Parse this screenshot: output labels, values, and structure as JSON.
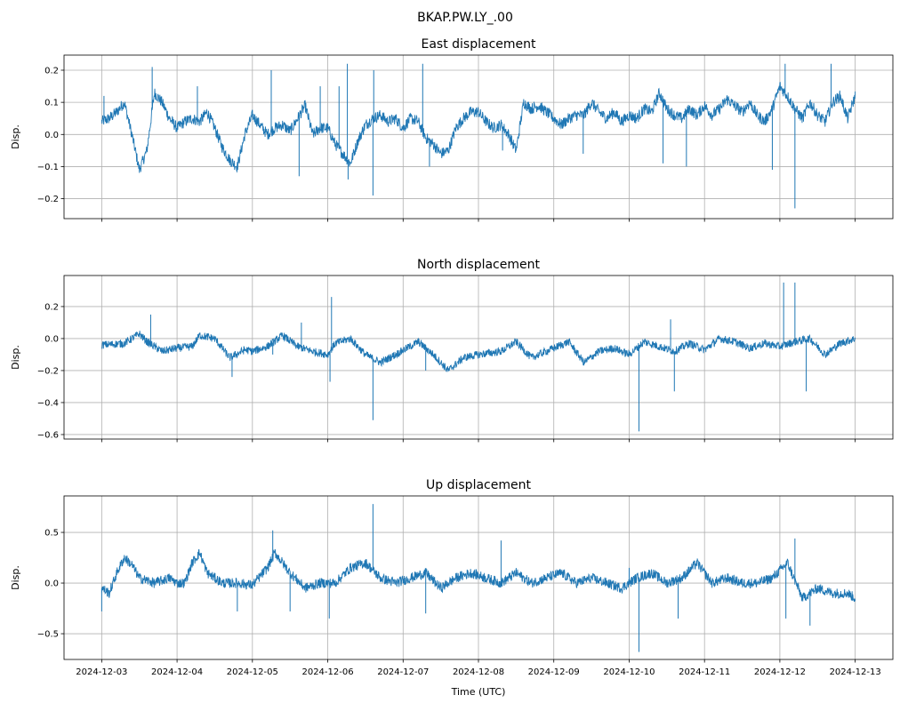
{
  "chart_data": {
    "type": "line",
    "suptitle": "BKAP.PW.LY_.00",
    "xlabel": "Time (UTC)",
    "x_unit": "days since 2024-12-03 00:00 UTC",
    "xlim": [
      -0.5,
      10.5
    ],
    "x_tick_values": [
      0,
      1,
      2,
      3,
      4,
      5,
      6,
      7,
      8,
      9,
      10
    ],
    "x_tick_labels": [
      "2024-12-03",
      "2024-12-04",
      "2024-12-05",
      "2024-12-06",
      "2024-12-07",
      "2024-12-08",
      "2024-12-09",
      "2024-12-10",
      "2024-12-11",
      "2024-12-12",
      "2024-12-13"
    ],
    "grid": true,
    "color": "#1f77b4",
    "panels": [
      {
        "title": "East displacement",
        "ylabel": "Disp.",
        "ylim": [
          -0.262,
          0.247
        ],
        "y_ticks": [
          -0.2,
          -0.1,
          0.0,
          0.1,
          0.2
        ],
        "y_tick_labels": [
          "−0.2",
          "−0.1",
          "0.0",
          "0.1",
          "0.2"
        ],
        "noise": 0.018,
        "series": [
          [
            0,
            0.04
          ],
          [
            0.1,
            0.05
          ],
          [
            0.2,
            0.07
          ],
          [
            0.3,
            0.1
          ],
          [
            0.4,
            0.0
          ],
          [
            0.5,
            -0.11
          ],
          [
            0.6,
            -0.05
          ],
          [
            0.7,
            0.13
          ],
          [
            0.8,
            0.1
          ],
          [
            0.9,
            0.05
          ],
          [
            1.0,
            0.02
          ],
          [
            1.1,
            0.04
          ],
          [
            1.2,
            0.05
          ],
          [
            1.3,
            0.04
          ],
          [
            1.4,
            0.07
          ],
          [
            1.5,
            0.02
          ],
          [
            1.6,
            -0.04
          ],
          [
            1.7,
            -0.08
          ],
          [
            1.8,
            -0.1
          ],
          [
            1.9,
            0.0
          ],
          [
            2.0,
            0.06
          ],
          [
            2.1,
            0.03
          ],
          [
            2.2,
            0.0
          ],
          [
            2.3,
            0.02
          ],
          [
            2.4,
            0.03
          ],
          [
            2.5,
            0.01
          ],
          [
            2.6,
            0.05
          ],
          [
            2.7,
            0.09
          ],
          [
            2.8,
            0.0
          ],
          [
            2.9,
            0.02
          ],
          [
            3.0,
            0.02
          ],
          [
            3.1,
            -0.03
          ],
          [
            3.2,
            -0.06
          ],
          [
            3.3,
            -0.09
          ],
          [
            3.4,
            -0.02
          ],
          [
            3.5,
            0.03
          ],
          [
            3.6,
            0.05
          ],
          [
            3.7,
            0.06
          ],
          [
            3.8,
            0.04
          ],
          [
            3.9,
            0.05
          ],
          [
            4.0,
            0.02
          ],
          [
            4.1,
            0.05
          ],
          [
            4.2,
            0.04
          ],
          [
            4.3,
            -0.01
          ],
          [
            4.4,
            -0.03
          ],
          [
            4.5,
            -0.06
          ],
          [
            4.6,
            -0.05
          ],
          [
            4.7,
            0.02
          ],
          [
            4.8,
            0.05
          ],
          [
            4.9,
            0.07
          ],
          [
            5.0,
            0.07
          ],
          [
            5.1,
            0.04
          ],
          [
            5.2,
            0.02
          ],
          [
            5.3,
            0.03
          ],
          [
            5.4,
            0.0
          ],
          [
            5.5,
            -0.05
          ],
          [
            5.6,
            0.1
          ],
          [
            5.7,
            0.08
          ],
          [
            5.8,
            0.09
          ],
          [
            5.9,
            0.07
          ],
          [
            6.0,
            0.05
          ],
          [
            6.1,
            0.03
          ],
          [
            6.2,
            0.05
          ],
          [
            6.3,
            0.06
          ],
          [
            6.4,
            0.06
          ],
          [
            6.5,
            0.1
          ],
          [
            6.6,
            0.07
          ],
          [
            6.7,
            0.05
          ],
          [
            6.8,
            0.07
          ],
          [
            6.9,
            0.04
          ],
          [
            7.0,
            0.06
          ],
          [
            7.1,
            0.05
          ],
          [
            7.2,
            0.08
          ],
          [
            7.3,
            0.07
          ],
          [
            7.4,
            0.13
          ],
          [
            7.5,
            0.08
          ],
          [
            7.6,
            0.06
          ],
          [
            7.7,
            0.05
          ],
          [
            7.8,
            0.08
          ],
          [
            7.9,
            0.06
          ],
          [
            8.0,
            0.09
          ],
          [
            8.1,
            0.06
          ],
          [
            8.2,
            0.08
          ],
          [
            8.3,
            0.11
          ],
          [
            8.4,
            0.09
          ],
          [
            8.5,
            0.07
          ],
          [
            8.6,
            0.1
          ],
          [
            8.7,
            0.06
          ],
          [
            8.8,
            0.04
          ],
          [
            8.9,
            0.08
          ],
          [
            9.0,
            0.15
          ],
          [
            9.1,
            0.12
          ],
          [
            9.2,
            0.08
          ],
          [
            9.3,
            0.05
          ],
          [
            9.4,
            0.1
          ],
          [
            9.5,
            0.06
          ],
          [
            9.6,
            0.04
          ],
          [
            9.7,
            0.1
          ],
          [
            9.8,
            0.12
          ],
          [
            9.9,
            0.05
          ],
          [
            10.0,
            0.12
          ]
        ],
        "spikes": [
          [
            0.03,
            0.12
          ],
          [
            0.67,
            0.21
          ],
          [
            1.27,
            0.15
          ],
          [
            2.25,
            0.2
          ],
          [
            2.62,
            -0.13
          ],
          [
            2.9,
            0.15
          ],
          [
            3.26,
            0.22
          ],
          [
            3.27,
            -0.14
          ],
          [
            3.15,
            0.15
          ],
          [
            3.6,
            -0.19
          ],
          [
            3.61,
            0.2
          ],
          [
            4.26,
            0.22
          ],
          [
            4.35,
            -0.1
          ],
          [
            5.32,
            -0.05
          ],
          [
            6.39,
            -0.06
          ],
          [
            7.45,
            -0.09
          ],
          [
            7.76,
            -0.1
          ],
          [
            8.9,
            -0.11
          ],
          [
            9.07,
            0.22
          ],
          [
            9.2,
            -0.23
          ],
          [
            9.68,
            0.22
          ]
        ]
      },
      {
        "title": "North displacement",
        "ylabel": "Disp.",
        "ylim": [
          -0.628,
          0.394
        ],
        "y_ticks": [
          -0.6,
          -0.4,
          -0.2,
          0.0,
          0.2
        ],
        "y_tick_labels": [
          "−0.6",
          "−0.4",
          "−0.2",
          "0.0",
          "0.2"
        ],
        "noise": 0.025,
        "series": [
          [
            0,
            -0.04
          ],
          [
            0.3,
            -0.03
          ],
          [
            0.5,
            0.03
          ],
          [
            0.6,
            -0.02
          ],
          [
            0.8,
            -0.08
          ],
          [
            1.0,
            -0.06
          ],
          [
            1.2,
            -0.05
          ],
          [
            1.3,
            0.02
          ],
          [
            1.5,
            0.0
          ],
          [
            1.7,
            -0.12
          ],
          [
            1.9,
            -0.07
          ],
          [
            2.0,
            -0.08
          ],
          [
            2.2,
            -0.05
          ],
          [
            2.4,
            0.02
          ],
          [
            2.6,
            -0.05
          ],
          [
            2.8,
            -0.08
          ],
          [
            3.0,
            -0.1
          ],
          [
            3.1,
            -0.03
          ],
          [
            3.3,
            0.0
          ],
          [
            3.5,
            -0.1
          ],
          [
            3.7,
            -0.15
          ],
          [
            3.9,
            -0.1
          ],
          [
            4.2,
            -0.02
          ],
          [
            4.4,
            -0.1
          ],
          [
            4.6,
            -0.2
          ],
          [
            4.8,
            -0.12
          ],
          [
            5.0,
            -0.1
          ],
          [
            5.3,
            -0.08
          ],
          [
            5.5,
            -0.02
          ],
          [
            5.7,
            -0.12
          ],
          [
            5.9,
            -0.08
          ],
          [
            6.2,
            -0.02
          ],
          [
            6.4,
            -0.15
          ],
          [
            6.6,
            -0.08
          ],
          [
            6.8,
            -0.06
          ],
          [
            7.0,
            -0.1
          ],
          [
            7.2,
            -0.02
          ],
          [
            7.4,
            -0.05
          ],
          [
            7.6,
            -0.08
          ],
          [
            7.8,
            -0.03
          ],
          [
            8.0,
            -0.07
          ],
          [
            8.2,
            0.0
          ],
          [
            8.4,
            -0.02
          ],
          [
            8.6,
            -0.06
          ],
          [
            8.8,
            -0.03
          ],
          [
            9.0,
            -0.05
          ],
          [
            9.2,
            -0.02
          ],
          [
            9.4,
            0.0
          ],
          [
            9.6,
            -0.1
          ],
          [
            9.8,
            -0.03
          ],
          [
            10.0,
            0.0
          ]
        ],
        "spikes": [
          [
            0.65,
            0.15
          ],
          [
            1.73,
            -0.24
          ],
          [
            2.27,
            -0.1
          ],
          [
            2.65,
            0.1
          ],
          [
            3.05,
            0.26
          ],
          [
            3.03,
            -0.27
          ],
          [
            3.6,
            -0.51
          ],
          [
            4.3,
            -0.2
          ],
          [
            7.13,
            -0.58
          ],
          [
            7.55,
            0.12
          ],
          [
            7.6,
            -0.33
          ],
          [
            9.05,
            0.35
          ],
          [
            9.2,
            0.35
          ],
          [
            9.35,
            -0.33
          ]
        ]
      },
      {
        "title": "Up displacement",
        "ylabel": "Disp.",
        "ylim": [
          -0.754,
          0.86
        ],
        "y_ticks": [
          -0.5,
          0.0,
          0.5
        ],
        "y_tick_labels": [
          "−0.5",
          "0.0",
          "0.5"
        ],
        "noise": 0.05,
        "series": [
          [
            0,
            -0.05
          ],
          [
            0.1,
            -0.1
          ],
          [
            0.2,
            0.1
          ],
          [
            0.3,
            0.25
          ],
          [
            0.4,
            0.18
          ],
          [
            0.5,
            0.05
          ],
          [
            0.7,
            0.0
          ],
          [
            0.9,
            0.05
          ],
          [
            1.0,
            0.0
          ],
          [
            1.1,
            0.0
          ],
          [
            1.2,
            0.2
          ],
          [
            1.3,
            0.3
          ],
          [
            1.4,
            0.1
          ],
          [
            1.6,
            0.0
          ],
          [
            1.8,
            0.0
          ],
          [
            2.0,
            -0.02
          ],
          [
            2.2,
            0.15
          ],
          [
            2.3,
            0.3
          ],
          [
            2.5,
            0.1
          ],
          [
            2.7,
            -0.05
          ],
          [
            2.9,
            0.0
          ],
          [
            3.1,
            0.0
          ],
          [
            3.3,
            0.15
          ],
          [
            3.5,
            0.2
          ],
          [
            3.7,
            0.05
          ],
          [
            3.9,
            0.0
          ],
          [
            4.1,
            0.05
          ],
          [
            4.3,
            0.1
          ],
          [
            4.5,
            -0.05
          ],
          [
            4.7,
            0.05
          ],
          [
            4.9,
            0.1
          ],
          [
            5.1,
            0.05
          ],
          [
            5.3,
            0.0
          ],
          [
            5.5,
            0.1
          ],
          [
            5.7,
            0.0
          ],
          [
            5.9,
            0.05
          ],
          [
            6.1,
            0.1
          ],
          [
            6.3,
            0.0
          ],
          [
            6.5,
            0.05
          ],
          [
            6.7,
            0.0
          ],
          [
            6.9,
            -0.05
          ],
          [
            7.1,
            0.05
          ],
          [
            7.3,
            0.1
          ],
          [
            7.5,
            0.0
          ],
          [
            7.7,
            0.05
          ],
          [
            7.9,
            0.2
          ],
          [
            8.1,
            0.0
          ],
          [
            8.3,
            0.05
          ],
          [
            8.5,
            0.0
          ],
          [
            8.7,
            0.0
          ],
          [
            8.9,
            0.05
          ],
          [
            9.1,
            0.2
          ],
          [
            9.3,
            -0.15
          ],
          [
            9.5,
            -0.05
          ],
          [
            9.7,
            -0.1
          ],
          [
            9.9,
            -0.1
          ],
          [
            10.0,
            -0.15
          ]
        ],
        "spikes": [
          [
            0.0,
            -0.28
          ],
          [
            1.8,
            -0.28
          ],
          [
            2.27,
            0.52
          ],
          [
            2.5,
            -0.28
          ],
          [
            3.02,
            -0.35
          ],
          [
            3.6,
            0.78
          ],
          [
            4.3,
            -0.3
          ],
          [
            5.3,
            0.42
          ],
          [
            7.0,
            0.15
          ],
          [
            7.13,
            -0.68
          ],
          [
            7.65,
            -0.35
          ],
          [
            9.08,
            -0.35
          ],
          [
            9.2,
            0.44
          ],
          [
            9.4,
            -0.42
          ]
        ]
      }
    ]
  }
}
